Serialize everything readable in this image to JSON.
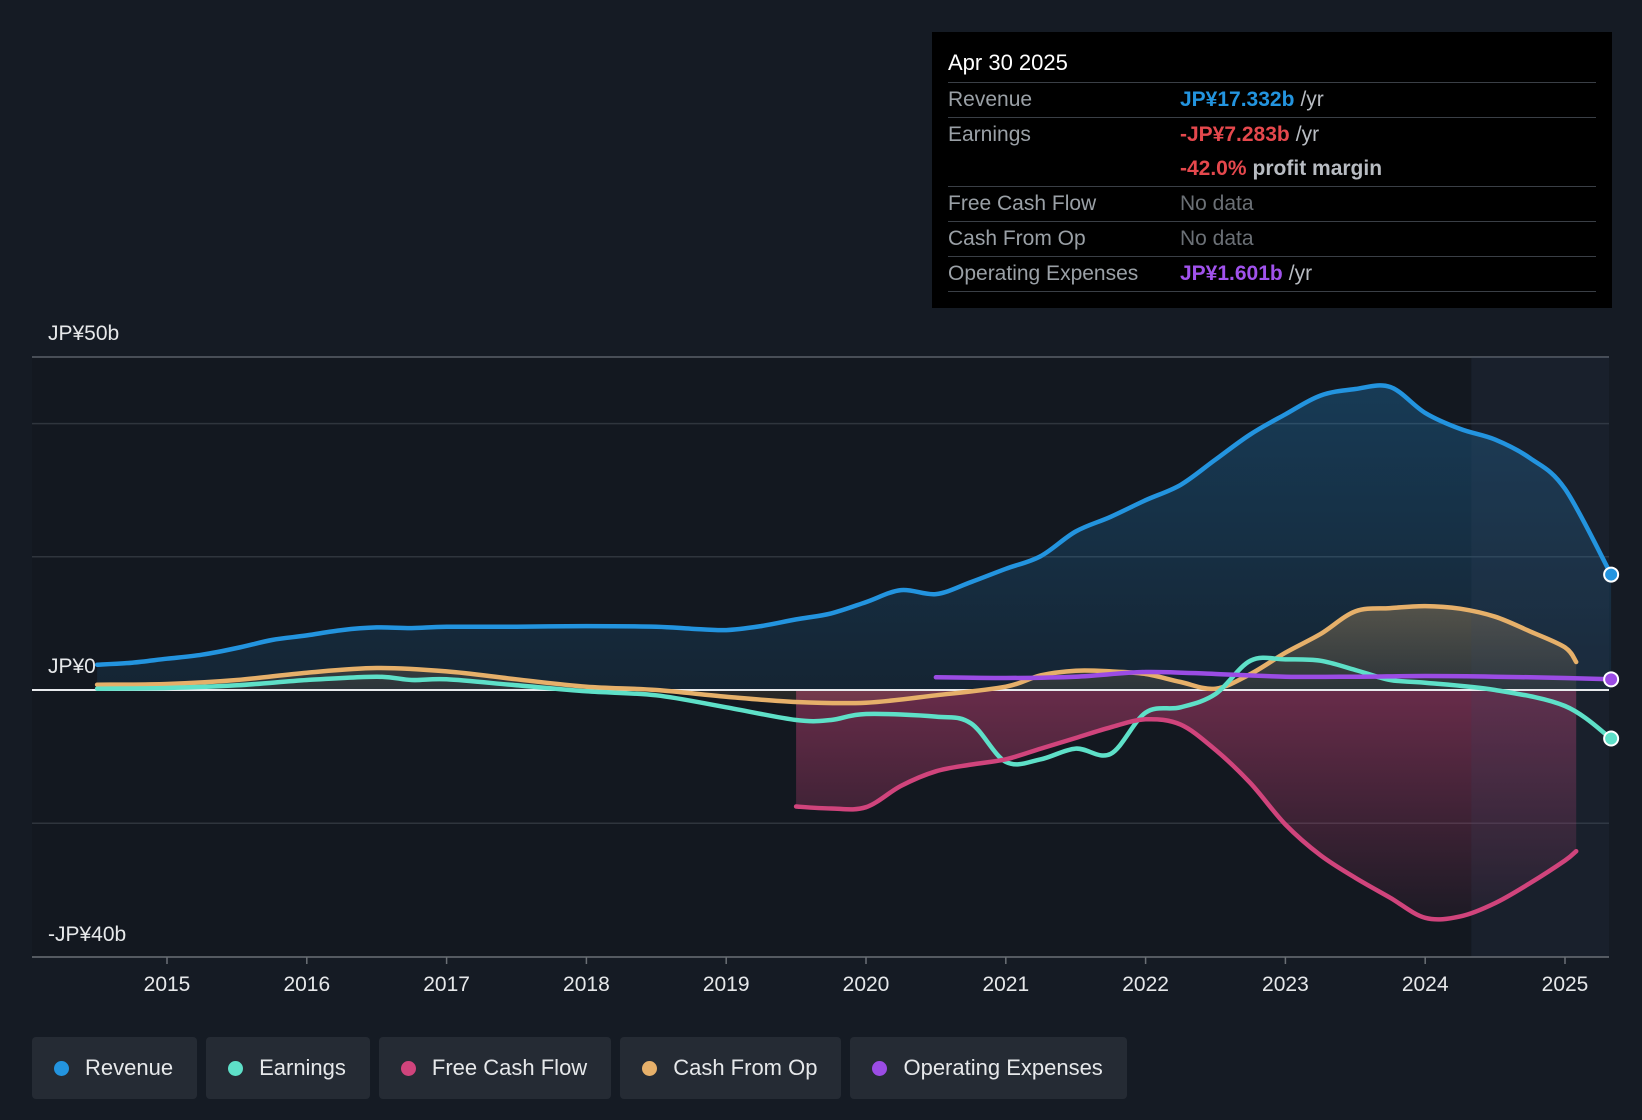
{
  "chart_data": {
    "type": "line",
    "title": "",
    "xlabel": "",
    "ylabel": "",
    "ylim": [
      -40,
      50
    ],
    "y_axis_labels": {
      "top": "JP¥50b",
      "zero": "JP¥0",
      "bottom": "-JP¥40b"
    },
    "x_ticks": [
      {
        "label": "2015",
        "x": 2015.0
      },
      {
        "label": "2016",
        "x": 2016.0
      },
      {
        "label": "2017",
        "x": 2017.0
      },
      {
        "label": "2018",
        "x": 2018.0
      },
      {
        "label": "2019",
        "x": 2019.0
      },
      {
        "label": "2020",
        "x": 2020.0
      },
      {
        "label": "2021",
        "x": 2021.0
      },
      {
        "label": "2022",
        "x": 2022.0
      },
      {
        "label": "2023",
        "x": 2023.0
      },
      {
        "label": "2024",
        "x": 2024.0
      },
      {
        "label": "2025",
        "x": 2025.0
      }
    ],
    "gridlines": [
      50,
      40,
      20,
      -20
    ],
    "xlim": [
      2014.0,
      2025.33
    ],
    "forecast_start": 2024.33,
    "series": [
      {
        "name": "Revenue",
        "color": "#2394df",
        "fill": "area",
        "points": [
          [
            2014.5,
            3.8
          ],
          [
            2014.75,
            4.1
          ],
          [
            2015.0,
            4.7
          ],
          [
            2015.25,
            5.3
          ],
          [
            2015.5,
            6.3
          ],
          [
            2015.75,
            7.5
          ],
          [
            2016.0,
            8.2
          ],
          [
            2016.25,
            9.0
          ],
          [
            2016.5,
            9.4
          ],
          [
            2016.75,
            9.3
          ],
          [
            2017.0,
            9.5
          ],
          [
            2017.5,
            9.5
          ],
          [
            2018.0,
            9.6
          ],
          [
            2018.5,
            9.5
          ],
          [
            2018.75,
            9.2
          ],
          [
            2019.0,
            9.0
          ],
          [
            2019.25,
            9.6
          ],
          [
            2019.5,
            10.6
          ],
          [
            2019.75,
            11.5
          ],
          [
            2020.0,
            13.2
          ],
          [
            2020.25,
            15.0
          ],
          [
            2020.5,
            14.4
          ],
          [
            2020.75,
            16.2
          ],
          [
            2021.0,
            18.2
          ],
          [
            2021.25,
            20.1
          ],
          [
            2021.5,
            23.8
          ],
          [
            2021.75,
            26.0
          ],
          [
            2022.0,
            28.5
          ],
          [
            2022.25,
            30.8
          ],
          [
            2022.5,
            34.6
          ],
          [
            2022.75,
            38.4
          ],
          [
            2023.0,
            41.4
          ],
          [
            2023.25,
            44.2
          ],
          [
            2023.5,
            45.2
          ],
          [
            2023.75,
            45.5
          ],
          [
            2024.0,
            41.6
          ],
          [
            2024.25,
            39.2
          ],
          [
            2024.5,
            37.6
          ],
          [
            2024.75,
            34.8
          ],
          [
            2025.0,
            30.2
          ],
          [
            2025.33,
            17.332
          ]
        ]
      },
      {
        "name": "Earnings",
        "color": "#5ee0c8",
        "fill": "none",
        "points": [
          [
            2014.5,
            0.2
          ],
          [
            2015.0,
            0.3
          ],
          [
            2015.5,
            0.7
          ],
          [
            2016.0,
            1.5
          ],
          [
            2016.5,
            2.0
          ],
          [
            2016.75,
            1.5
          ],
          [
            2017.0,
            1.6
          ],
          [
            2017.5,
            0.7
          ],
          [
            2018.0,
            -0.2
          ],
          [
            2018.5,
            -0.8
          ],
          [
            2019.0,
            -2.6
          ],
          [
            2019.5,
            -4.5
          ],
          [
            2019.75,
            -4.5
          ],
          [
            2020.0,
            -3.6
          ],
          [
            2020.5,
            -4.0
          ],
          [
            2020.75,
            -5.0
          ],
          [
            2021.0,
            -10.8
          ],
          [
            2021.25,
            -10.4
          ],
          [
            2021.5,
            -8.8
          ],
          [
            2021.75,
            -9.6
          ],
          [
            2022.0,
            -3.4
          ],
          [
            2022.25,
            -2.6
          ],
          [
            2022.5,
            -0.6
          ],
          [
            2022.75,
            4.4
          ],
          [
            2023.0,
            4.6
          ],
          [
            2023.25,
            4.4
          ],
          [
            2023.5,
            3.0
          ],
          [
            2023.75,
            1.5
          ],
          [
            2024.0,
            1.1
          ],
          [
            2024.5,
            0.0
          ],
          [
            2025.0,
            -2.4
          ],
          [
            2025.33,
            -7.283
          ]
        ]
      },
      {
        "name": "Free Cash Flow",
        "color": "#d0447c",
        "fill": "area",
        "points": [
          [
            2019.5,
            -17.5
          ],
          [
            2019.75,
            -17.8
          ],
          [
            2020.0,
            -17.6
          ],
          [
            2020.25,
            -14.4
          ],
          [
            2020.5,
            -12.2
          ],
          [
            2020.75,
            -11.2
          ],
          [
            2021.0,
            -10.4
          ],
          [
            2021.25,
            -8.8
          ],
          [
            2021.5,
            -7.2
          ],
          [
            2021.75,
            -5.6
          ],
          [
            2022.0,
            -4.4
          ],
          [
            2022.25,
            -5.2
          ],
          [
            2022.5,
            -9.0
          ],
          [
            2022.75,
            -14.0
          ],
          [
            2023.0,
            -20.2
          ],
          [
            2023.25,
            -24.8
          ],
          [
            2023.5,
            -28.2
          ],
          [
            2023.75,
            -31.2
          ],
          [
            2024.0,
            -34.2
          ],
          [
            2024.25,
            -34.0
          ],
          [
            2024.5,
            -32.0
          ],
          [
            2024.75,
            -29.0
          ],
          [
            2025.0,
            -25.6
          ],
          [
            2025.08,
            -24.2
          ]
        ]
      },
      {
        "name": "Cash From Op",
        "color": "#e6b06a",
        "fill": "area",
        "points": [
          [
            2014.5,
            0.8
          ],
          [
            2015.0,
            0.9
          ],
          [
            2015.5,
            1.5
          ],
          [
            2016.0,
            2.6
          ],
          [
            2016.5,
            3.3
          ],
          [
            2017.0,
            2.8
          ],
          [
            2017.5,
            1.6
          ],
          [
            2018.0,
            0.5
          ],
          [
            2018.5,
            0.0
          ],
          [
            2019.0,
            -1.0
          ],
          [
            2019.5,
            -1.8
          ],
          [
            2020.0,
            -1.9
          ],
          [
            2020.5,
            -0.8
          ],
          [
            2021.0,
            0.5
          ],
          [
            2021.25,
            2.2
          ],
          [
            2021.5,
            2.9
          ],
          [
            2021.75,
            2.8
          ],
          [
            2022.0,
            2.4
          ],
          [
            2022.25,
            1.2
          ],
          [
            2022.5,
            0.2
          ],
          [
            2022.75,
            2.4
          ],
          [
            2023.0,
            5.6
          ],
          [
            2023.25,
            8.4
          ],
          [
            2023.5,
            11.8
          ],
          [
            2023.75,
            12.3
          ],
          [
            2024.0,
            12.6
          ],
          [
            2024.25,
            12.2
          ],
          [
            2024.5,
            11.0
          ],
          [
            2024.75,
            8.8
          ],
          [
            2025.0,
            6.4
          ],
          [
            2025.08,
            4.2
          ]
        ]
      },
      {
        "name": "Operating Expenses",
        "color": "#9b4ce4",
        "fill": "none",
        "points": [
          [
            2020.5,
            1.9
          ],
          [
            2021.0,
            1.8
          ],
          [
            2021.5,
            2.0
          ],
          [
            2022.0,
            2.7
          ],
          [
            2022.5,
            2.4
          ],
          [
            2023.0,
            2.0
          ],
          [
            2023.5,
            2.0
          ],
          [
            2024.0,
            2.1
          ],
          [
            2024.5,
            2.0
          ],
          [
            2025.0,
            1.8
          ],
          [
            2025.33,
            1.601
          ]
        ]
      }
    ]
  },
  "tooltip": {
    "date": "Apr 30 2025",
    "revenue_label": "Revenue",
    "revenue_value": "JP¥17.332b",
    "revenue_unit": "/yr",
    "earnings_label": "Earnings",
    "earnings_value": "-JP¥7.283b",
    "earnings_unit": "/yr",
    "margin_value": "-42.0%",
    "margin_text": "profit margin",
    "fcf_label": "Free Cash Flow",
    "fcf_value": "No data",
    "cfo_label": "Cash From Op",
    "cfo_value": "No data",
    "opex_label": "Operating Expenses",
    "opex_value": "JP¥1.601b",
    "opex_unit": "/yr"
  },
  "legend": [
    {
      "label": "Revenue",
      "color": "#2394df"
    },
    {
      "label": "Earnings",
      "color": "#5ee0c8"
    },
    {
      "label": "Free Cash Flow",
      "color": "#d0447c"
    },
    {
      "label": "Cash From Op",
      "color": "#e6b06a"
    },
    {
      "label": "Operating Expenses",
      "color": "#9b4ce4"
    }
  ]
}
